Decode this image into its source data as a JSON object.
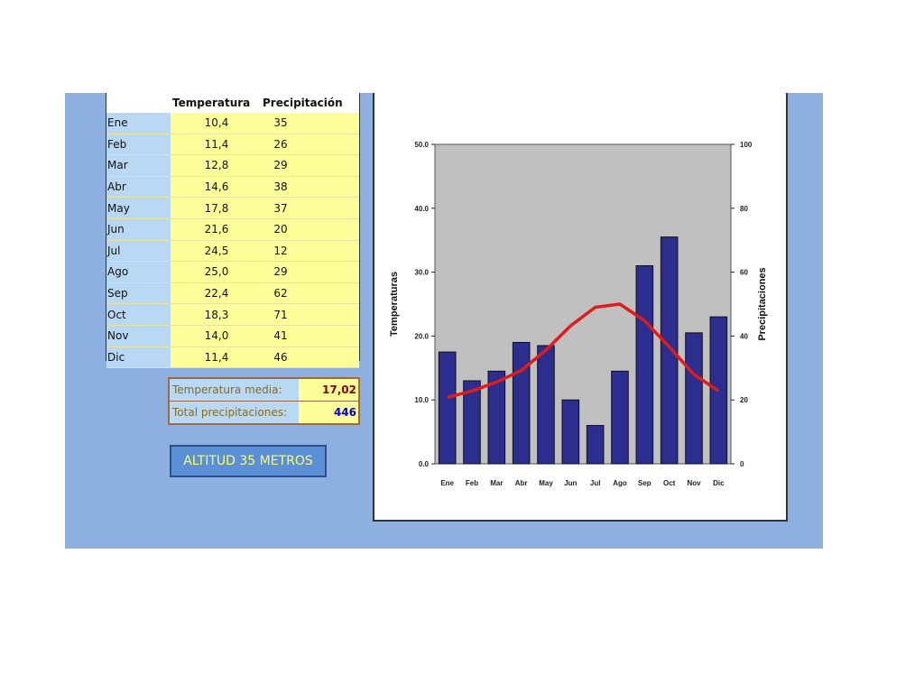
{
  "table": {
    "header_temp": "Temperatura",
    "header_prec": "Precipitación",
    "rows": [
      {
        "month": "Ene",
        "temp": "10,4",
        "prec": "35"
      },
      {
        "month": "Feb",
        "temp": "11,4",
        "prec": "26"
      },
      {
        "month": "Mar",
        "temp": "12,8",
        "prec": "29"
      },
      {
        "month": "Abr",
        "temp": "14,6",
        "prec": "38"
      },
      {
        "month": "May",
        "temp": "17,8",
        "prec": "37"
      },
      {
        "month": "Jun",
        "temp": "21,6",
        "prec": "20"
      },
      {
        "month": "Jul",
        "temp": "24,5",
        "prec": "12"
      },
      {
        "month": "Ago",
        "temp": "25,0",
        "prec": "29"
      },
      {
        "month": "Sep",
        "temp": "22,4",
        "prec": "62"
      },
      {
        "month": "Oct",
        "temp": "18,3",
        "prec": "71"
      },
      {
        "month": "Nov",
        "temp": "14,0",
        "prec": "41"
      },
      {
        "month": "Dic",
        "temp": "11,4",
        "prec": "46"
      }
    ]
  },
  "summary": {
    "temp_label": "Temperatura media:",
    "temp_value": "17,02",
    "prec_label": "Total precipitaciones:",
    "prec_value": "446",
    "temp_color": "#8b0000",
    "prec_color": "#0000cc"
  },
  "altitud_label": "ALTITUD 35 METROS",
  "chart_data": {
    "type": "bar",
    "categories": [
      "Ene",
      "Feb",
      "Mar",
      "Abr",
      "May",
      "Jun",
      "Jul",
      "Ago",
      "Sep",
      "Oct",
      "Nov",
      "Dic"
    ],
    "series": [
      {
        "type": "bar",
        "axis": "right",
        "color": "#2b2d8f",
        "values": [
          35,
          26,
          29,
          38,
          37,
          20,
          12,
          29,
          62,
          71,
          41,
          46
        ]
      },
      {
        "type": "line",
        "axis": "left",
        "color": "#e01b1b",
        "values": [
          10.4,
          11.4,
          12.8,
          14.6,
          17.8,
          21.6,
          24.5,
          25.0,
          22.4,
          18.3,
          14.0,
          11.4
        ]
      }
    ],
    "ylabel": "Temperaturas",
    "ylabel_right": "Precipitaciones",
    "ylim": [
      0,
      50
    ],
    "ylim_right": [
      0,
      100
    ],
    "yticks": [
      "0.0",
      "10.0",
      "20.0",
      "30.0",
      "40.0",
      "50.0"
    ],
    "yticks_right": [
      "0",
      "20",
      "40",
      "60",
      "80",
      "100"
    ],
    "plot_background": "#c0c0c0",
    "grid": false
  }
}
